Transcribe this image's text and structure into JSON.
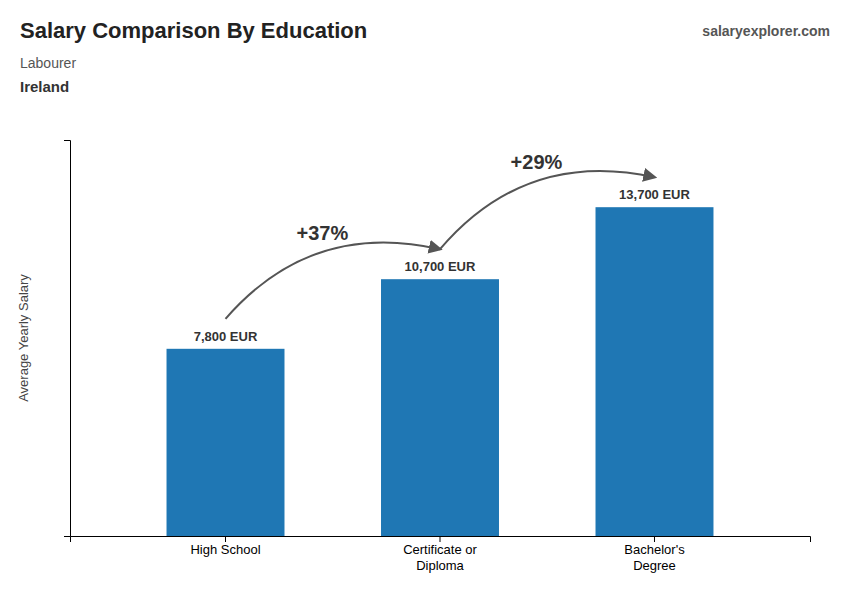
{
  "chart_data": {
    "type": "bar",
    "title": "Salary Comparison By Education",
    "subtitle": [
      "Labourer",
      "Ireland"
    ],
    "ylabel": "Average Yearly Salary",
    "categories": [
      "High School",
      "Certificate or\nDiploma",
      "Bachelor's\nDegree"
    ],
    "values": [
      7800,
      10700,
      13700
    ],
    "value_labels": [
      "7,800 EUR",
      "10,700 EUR",
      "13,700 EUR"
    ],
    "data_labels": true,
    "ylim": [
      0,
      16500
    ],
    "yticks": [],
    "tick_labels": "x",
    "grid": false,
    "annotations": [
      {
        "text": "+37%",
        "from": 0,
        "to": 1
      },
      {
        "text": "+29%",
        "from": 1,
        "to": 2
      },
      {
        "text": "salaryexplorer.com"
      }
    ]
  }
}
